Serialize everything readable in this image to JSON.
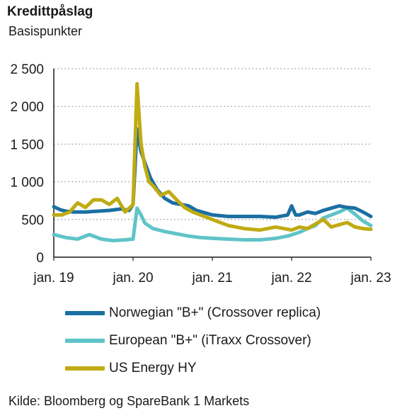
{
  "title": "Kredittpåslag",
  "subtitle": "Basispunkter",
  "source": "Kilde: Bloomberg og SpareBank 1 Markets",
  "chart_data": {
    "type": "line",
    "x_tick_labels": [
      "jan. 19",
      "jan. 20",
      "jan. 21",
      "jan. 22",
      "jan. 23"
    ],
    "y_tick_labels": [
      "0",
      "500",
      "1 000",
      "1 500",
      "2 000",
      "2 500"
    ],
    "xlim": [
      2019.0,
      2023.0
    ],
    "ylim": [
      0,
      2500
    ],
    "grid": "horizontal dotted",
    "legend_position": "below",
    "series": [
      {
        "name": "Norwegian \"B+\" (Crossover replica)",
        "color": "#1a6fa3",
        "x": [
          2019.0,
          2019.08,
          2019.15,
          2019.25,
          2019.4,
          2019.55,
          2019.7,
          2019.85,
          2019.95,
          2020.0,
          2020.05,
          2020.1,
          2020.15,
          2020.22,
          2020.3,
          2020.4,
          2020.5,
          2020.6,
          2020.7,
          2020.8,
          2020.9,
          2021.0,
          2021.2,
          2021.4,
          2021.6,
          2021.8,
          2021.95,
          2022.0,
          2022.05,
          2022.1,
          2022.2,
          2022.3,
          2022.4,
          2022.5,
          2022.6,
          2022.7,
          2022.8,
          2022.9,
          2023.0
        ],
        "values": [
          670,
          630,
          610,
          600,
          600,
          610,
          620,
          640,
          620,
          700,
          1700,
          1400,
          1250,
          1050,
          900,
          780,
          720,
          700,
          680,
          620,
          590,
          560,
          540,
          540,
          540,
          530,
          560,
          680,
          560,
          560,
          600,
          580,
          620,
          650,
          680,
          660,
          650,
          600,
          540
        ]
      },
      {
        "name": "European \"B+\" (iTraxx Crossover)",
        "color": "#5fc4c8",
        "x": [
          2019.0,
          2019.15,
          2019.3,
          2019.45,
          2019.6,
          2019.75,
          2019.9,
          2020.0,
          2020.05,
          2020.1,
          2020.15,
          2020.25,
          2020.4,
          2020.55,
          2020.7,
          2020.85,
          2021.0,
          2021.2,
          2021.4,
          2021.6,
          2021.8,
          2021.95,
          2022.1,
          2022.2,
          2022.3,
          2022.4,
          2022.5,
          2022.6,
          2022.7,
          2022.8,
          2022.9,
          2023.0
        ],
        "values": [
          300,
          260,
          240,
          300,
          240,
          220,
          230,
          240,
          650,
          560,
          450,
          380,
          340,
          310,
          280,
          260,
          250,
          240,
          230,
          230,
          250,
          280,
          330,
          380,
          420,
          520,
          560,
          600,
          650,
          570,
          480,
          420
        ]
      },
      {
        "name": "US Energy HY",
        "color": "#c0ab12",
        "x": [
          2019.0,
          2019.1,
          2019.2,
          2019.3,
          2019.4,
          2019.5,
          2019.6,
          2019.7,
          2019.8,
          2019.9,
          2020.0,
          2020.05,
          2020.1,
          2020.15,
          2020.2,
          2020.25,
          2020.35,
          2020.45,
          2020.55,
          2020.65,
          2020.75,
          2020.85,
          2021.0,
          2021.2,
          2021.4,
          2021.6,
          2021.8,
          2022.0,
          2022.1,
          2022.2,
          2022.3,
          2022.4,
          2022.5,
          2022.6,
          2022.7,
          2022.8,
          2022.9,
          2023.0
        ],
        "values": [
          560,
          560,
          600,
          720,
          660,
          760,
          760,
          700,
          780,
          600,
          700,
          2300,
          1500,
          1200,
          1000,
          950,
          820,
          870,
          760,
          660,
          600,
          560,
          500,
          420,
          380,
          360,
          400,
          360,
          400,
          380,
          440,
          500,
          400,
          430,
          460,
          400,
          380,
          370
        ]
      }
    ]
  }
}
